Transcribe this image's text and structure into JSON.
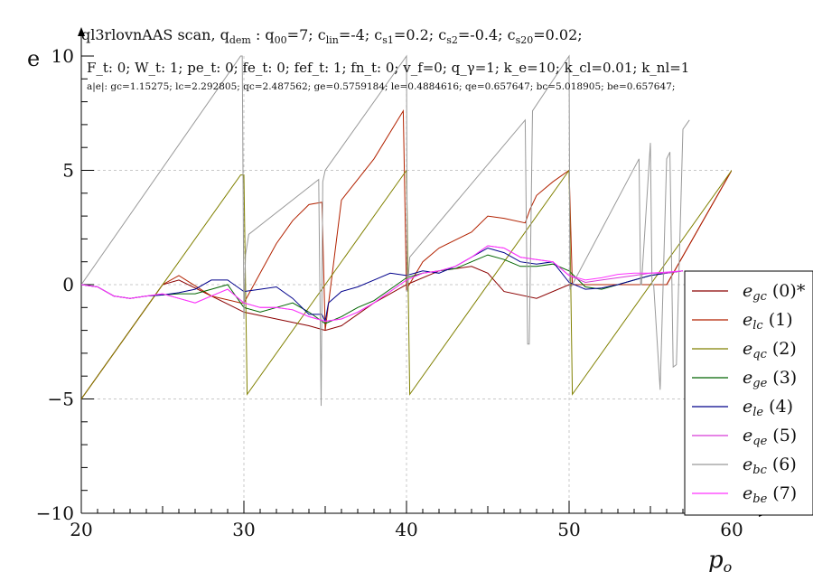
{
  "chart_data": {
    "type": "line",
    "title": "ql3rlovnAAS scan, q",
    "title_sub": "dem",
    "title_rest": " : q",
    "title_sub2": "00",
    "title_params": "=7; c",
    "title_lin": "lin",
    "title_lin_val": "=-4; c",
    "title_s1": "s1",
    "title_s1_val": "=0.2; c",
    "title_s2": "s2",
    "title_s2_val": "=-0.4; c",
    "title_s20": "s20",
    "title_s20_val": "=0.02;",
    "info_line": "F_t: 0; W_t: 1; pe_t: 0; fe_t: 0; fef_t: 1; fn_t: 0; v_f=0; q_γ=1; k_e=10; k_cl=0.01; k_nl=1",
    "stats_line": "a|e|: gc=1.15275; lc=2.292805; qc=2.487562; ge=0.5759184; le=0.4884616; qe=0.657647; bc=5.018905; be=0.657647;",
    "ylabel": "e",
    "xlabel": "p",
    "xlabel_sub": "o",
    "xlim": [
      20,
      60
    ],
    "ylim": [
      -10,
      10
    ],
    "xticks": [
      "20",
      "30",
      "40",
      "50",
      "60"
    ],
    "yticks": [
      "−10",
      "−5",
      "0",
      "5",
      "10"
    ],
    "grid": true,
    "legend_position": "bottom-right",
    "series": [
      {
        "name": "e",
        "sub": "gc",
        "tag": "(0)*",
        "color": "#8b0000",
        "x": [
          20,
          24,
          25,
          26,
          28,
          30,
          32,
          34,
          35,
          36,
          38,
          40,
          42,
          44,
          45,
          46,
          48,
          50,
          52,
          54,
          55,
          56,
          58,
          60
        ],
        "y": [
          -5,
          -1,
          0,
          0.2,
          -0.5,
          -1.2,
          -1.5,
          -1.8,
          -2,
          -1.8,
          -0.8,
          0,
          0.6,
          0.8,
          0.5,
          -0.3,
          -0.6,
          0,
          0,
          0,
          0,
          0,
          2.5,
          5
        ]
      },
      {
        "name": "e",
        "sub": "lc",
        "tag": "(1)",
        "color": "#b22200",
        "x": [
          20,
          24,
          25,
          26,
          28,
          29.8,
          30,
          31,
          32,
          33,
          34,
          34.8,
          35,
          36,
          38,
          39.8,
          40,
          41,
          42,
          44,
          45,
          46,
          47.3,
          47.6,
          48,
          49,
          50,
          50.2,
          52,
          54,
          55,
          56,
          58,
          60
        ],
        "y": [
          -5,
          -1,
          0,
          0.4,
          -0.5,
          -0.8,
          -0.8,
          0.5,
          1.8,
          2.8,
          3.5,
          3.6,
          -2,
          3.7,
          5.5,
          7.6,
          -0.2,
          1,
          1.6,
          2.3,
          3,
          2.9,
          2.7,
          3.3,
          3.9,
          4.5,
          5,
          0,
          0,
          0,
          0,
          0,
          2.5,
          5
        ]
      },
      {
        "name": "e",
        "sub": "qc",
        "tag": "(2)",
        "color": "#808000",
        "x": [
          20,
          24,
          29.8,
          30,
          30.2,
          40,
          40.2,
          50,
          50.2,
          60
        ],
        "y": [
          -5,
          -1,
          4.8,
          4.8,
          -4.8,
          5,
          -4.8,
          5,
          -4.8,
          5
        ]
      },
      {
        "name": "e",
        "sub": "ge",
        "tag": "(3)",
        "color": "#006400",
        "x": [
          20,
          21,
          22,
          23,
          24,
          25,
          26,
          27,
          28,
          29,
          30,
          31,
          32,
          33,
          34,
          35,
          36,
          37,
          38,
          39,
          40,
          41,
          42,
          43,
          44,
          45,
          46,
          47,
          48,
          49,
          50,
          51,
          52,
          53,
          54,
          55,
          56,
          57
        ],
        "y": [
          0,
          -0.1,
          -0.5,
          -0.6,
          -0.5,
          -0.45,
          -0.4,
          -0.4,
          -0.2,
          0,
          -1.0,
          -1.2,
          -1.0,
          -0.8,
          -1.2,
          -1.7,
          -1.4,
          -1.0,
          -0.7,
          -0.2,
          0.3,
          0.5,
          0.6,
          0.7,
          1.0,
          1.3,
          1.1,
          0.8,
          0.8,
          0.9,
          0.6,
          -0.1,
          -0.2,
          0,
          0.2,
          0.4,
          0.5,
          0.6
        ]
      },
      {
        "name": "e",
        "sub": "le",
        "tag": "(4)",
        "color": "#00008b",
        "x": [
          20,
          21,
          22,
          23,
          24,
          25,
          26,
          27,
          28,
          29,
          30,
          31,
          32,
          33,
          34,
          34.8,
          35,
          35.2,
          36,
          37,
          38,
          39,
          40,
          41,
          42,
          43,
          44,
          45,
          46,
          47,
          48,
          49,
          50,
          51,
          52,
          53,
          54,
          55,
          56,
          57
        ],
        "y": [
          0,
          -0.1,
          -0.5,
          -0.6,
          -0.5,
          -0.45,
          -0.35,
          -0.2,
          0.2,
          0.2,
          -0.3,
          -0.2,
          -0.1,
          -0.6,
          -1.3,
          -1.3,
          -1.6,
          -0.8,
          -0.3,
          -0.1,
          0.2,
          0.5,
          0.4,
          0.6,
          0.5,
          0.8,
          1.2,
          1.6,
          1.4,
          1.0,
          0.9,
          1.0,
          0.1,
          -0.2,
          -0.15,
          0,
          0.2,
          0.4,
          0.5,
          0.6
        ]
      },
      {
        "name": "e",
        "sub": "qe",
        "tag": "(5)",
        "color": "#d63ad6",
        "x": [
          20,
          21,
          22,
          23,
          24,
          25,
          26,
          27,
          28,
          29,
          30,
          31,
          32,
          33,
          34,
          35,
          36,
          37,
          38,
          39,
          40,
          41,
          42,
          43,
          44,
          45,
          46,
          47,
          48,
          49,
          50,
          51,
          52,
          53,
          54,
          55,
          56,
          57
        ],
        "y": [
          0,
          -0.1,
          -0.5,
          -0.6,
          -0.5,
          -0.4,
          -0.6,
          -0.8,
          -0.5,
          -0.2,
          -0.8,
          -1.0,
          -1.0,
          -1.1,
          -1.4,
          -1.6,
          -1.5,
          -1.2,
          -0.8,
          -0.3,
          0.2,
          0.5,
          0.6,
          0.8,
          1.2,
          1.7,
          1.6,
          1.2,
          1.1,
          1.0,
          0.4,
          0.1,
          0.2,
          0.3,
          0.4,
          0.5,
          0.5,
          0.6
        ]
      },
      {
        "name": "e",
        "sub": "bc",
        "tag": "(6)",
        "color": "#999999",
        "x": [
          20,
          29.8,
          29.9,
          30,
          30.1,
          30.3,
          34.6,
          34.75,
          34.85,
          35,
          40,
          40.05,
          40.2,
          47.3,
          47.45,
          47.55,
          47.75,
          50,
          50.05,
          50.2,
          54.3,
          54.4,
          54.45,
          55,
          55.1,
          55.2,
          55.6,
          56,
          56.2,
          56.4,
          56.6,
          57,
          57.2,
          57.4
        ],
        "y": [
          0,
          10,
          10,
          -1.5,
          1.3,
          2.2,
          4.6,
          -5.3,
          4.5,
          5,
          10,
          -0.3,
          1.2,
          7.2,
          -2.6,
          -2.6,
          7.6,
          10,
          -0.2,
          0,
          5.5,
          0,
          0,
          6.2,
          0,
          0,
          -4.6,
          5.5,
          5.8,
          -3.6,
          -3.5,
          6.8,
          7.0,
          7.2
        ]
      },
      {
        "name": "e",
        "sub": "be",
        "tag": "(7)",
        "color": "#ff33ff",
        "x": [
          20,
          21,
          22,
          23,
          24,
          25,
          26,
          27,
          28,
          29,
          30,
          31,
          32,
          33,
          34,
          35,
          36,
          37,
          38,
          39,
          40,
          41,
          42,
          43,
          44,
          45,
          46,
          47,
          48,
          49,
          50,
          51,
          52,
          53,
          54,
          55,
          56,
          57
        ],
        "y": [
          0,
          -0.1,
          -0.5,
          -0.6,
          -0.5,
          -0.4,
          -0.6,
          -0.8,
          -0.5,
          -0.2,
          -0.8,
          -1.0,
          -1.0,
          -1.1,
          -1.4,
          -1.6,
          -1.5,
          -1.2,
          -0.8,
          -0.3,
          0.2,
          0.5,
          0.6,
          0.8,
          1.2,
          1.7,
          1.6,
          1.2,
          1.1,
          1.0,
          0.4,
          0.2,
          0.3,
          0.45,
          0.5,
          0.5,
          0.55,
          0.6
        ]
      }
    ]
  }
}
